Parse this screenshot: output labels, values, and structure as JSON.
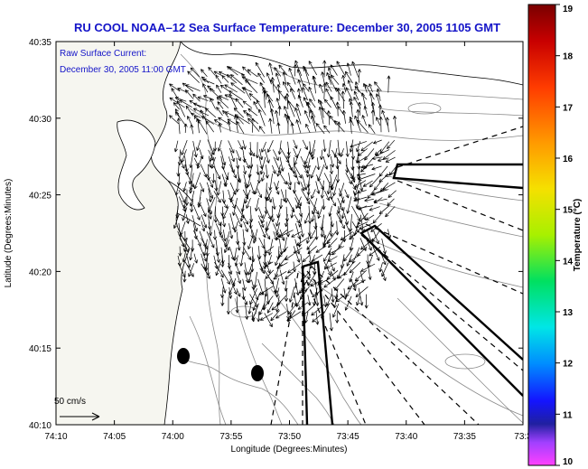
{
  "title": "RU COOL   NOAA–12  Sea Surface Temperature:  December 30, 2005 1105 GMT",
  "current_label": {
    "line1": "Raw Surface Current:",
    "line2": "December 30, 2005 11:00 GMT"
  },
  "axes": {
    "xlabel": "Longitude (Degrees:Minutes)",
    "ylabel": "Latitude (Degrees:Minutes)",
    "x_ticks": [
      "74:10",
      "74:05",
      "74:00",
      "73:55",
      "73:50",
      "73:45",
      "73:40",
      "73:35",
      "73:3"
    ],
    "y_ticks": [
      "40:35",
      "40:30",
      "40:25",
      "40:20",
      "40:15",
      "40:10"
    ]
  },
  "scale_label": "50 cm/s",
  "colorbar": {
    "label": "Temperature (°C)",
    "min": 10,
    "max": 19,
    "ticks": [
      "19",
      "18",
      "17",
      "16",
      "15",
      "14",
      "13",
      "12",
      "11",
      "10"
    ]
  },
  "colors": {
    "title": "#1414c8",
    "land": "#f6f6f0",
    "frame": "#000000"
  },
  "icons": {
    "buoy_markers": "filled-ellipse",
    "scale_arrow": "arrow"
  }
}
